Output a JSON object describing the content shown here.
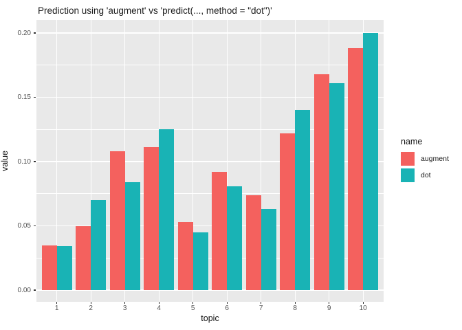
{
  "title": "Prediction using 'augment' vs 'predict(..., method = \"dot\")'",
  "chart_data": {
    "type": "bar",
    "grouping": "dodged",
    "title": "Prediction using 'augment' vs 'predict(..., method = \"dot\")'",
    "categories": [
      "1",
      "2",
      "3",
      "4",
      "5",
      "6",
      "7",
      "8",
      "9",
      "10"
    ],
    "series": [
      {
        "name": "augment",
        "color": "#F4615E",
        "values": [
          0.035,
          0.05,
          0.108,
          0.111,
          0.053,
          0.092,
          0.074,
          0.122,
          0.168,
          0.188
        ]
      },
      {
        "name": "dot",
        "color": "#19B3B5",
        "values": [
          0.034,
          0.07,
          0.084,
          0.125,
          0.045,
          0.081,
          0.063,
          0.14,
          0.161,
          0.2
        ]
      }
    ],
    "xlabel": "topic",
    "ylabel": "value",
    "ylim": [
      0,
      0.21
    ],
    "yticks": [
      0,
      0.05,
      0.1,
      0.15,
      0.2
    ],
    "ytick_labels": [
      "0.00",
      "0.05",
      "0.10",
      "0.15",
      "0.20"
    ],
    "grid": "major and minor horizontal white, major vertical white at category centers",
    "legend_title": "name",
    "legend_position": "right",
    "panel_background": "#E9E9E9",
    "grid_color": "#FFFFFF",
    "tick_color": "#333333",
    "tick_label_color": "#4D4D4D"
  }
}
